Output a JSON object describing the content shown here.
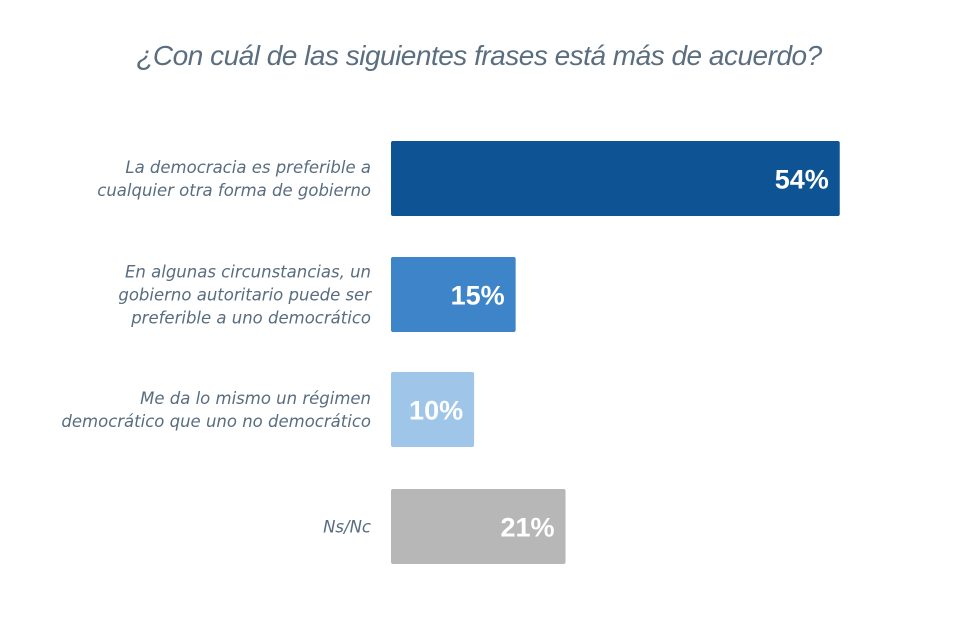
{
  "chart_data": {
    "type": "bar",
    "orientation": "horizontal",
    "title": "¿Con cuál de las siguientes frases está más de acuerdo?",
    "xlabel": "",
    "ylabel": "",
    "xlim": [
      0,
      100
    ],
    "grid": false,
    "legend": null,
    "unit": "%",
    "categories": [
      [
        "La democracia es preferible a",
        "cualquier otra forma de gobierno"
      ],
      [
        "En algunas circunstancias, un",
        "gobierno autoritario puede ser",
        "preferible a uno democrático"
      ],
      [
        "Me da lo mismo un régimen",
        "democrático que uno no democrático"
      ],
      [
        "Ns/Nc"
      ]
    ],
    "values": [
      54,
      15,
      10,
      21
    ],
    "value_labels": [
      "54%",
      "15%",
      "10%",
      "21%"
    ],
    "colors": [
      "#0e5394",
      "#3d85c8",
      "#9fc5e8",
      "#b7b7b7"
    ]
  }
}
